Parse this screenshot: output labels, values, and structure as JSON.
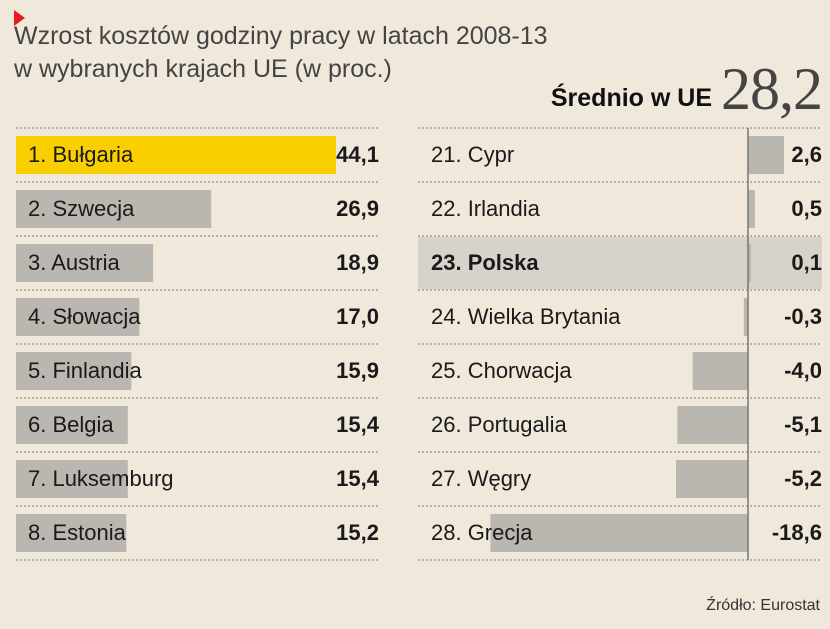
{
  "header": {
    "title": "Wzrost kosztów godziny pracy w latach 2008-13\nw wybranych krajach UE (w proc.)",
    "average_label": "Średnio w UE",
    "average_value": "28,2"
  },
  "source": "Źródło: Eurostat",
  "colors": {
    "background": "#efe8db",
    "bar": "#bab6b0",
    "highlight_bar": "#f9cf00",
    "poland_row": "#d7d2ca",
    "marker": "#e41b23"
  },
  "chart_data": {
    "type": "bar",
    "title": "Wzrost kosztów godziny pracy w latach 2008-13 w wybranych krajach UE (w proc.)",
    "unit": "proc.",
    "average": 28.2,
    "series": [
      {
        "categories": [
          "1. Bułgaria",
          "2. Szwecja",
          "3. Austria",
          "4. Słowacja",
          "5. Finlandia",
          "6. Belgia",
          "7. Luksemburg",
          "8. Estonia"
        ],
        "values": [
          44.1,
          26.9,
          18.9,
          17.0,
          15.9,
          15.4,
          15.4,
          15.2
        ],
        "labels": [
          "44,1",
          "26,9",
          "18,9",
          "17,0",
          "15,9",
          "15,4",
          "15,4",
          "15,2"
        ]
      },
      {
        "categories": [
          "21. Cypr",
          "22. Irlandia",
          "23. Polska",
          "24. Wielka Brytania",
          "25. Chorwacja",
          "26. Portugalia",
          "27.  Węgry",
          "28. Grecja"
        ],
        "values": [
          2.6,
          0.5,
          0.1,
          -0.3,
          -4.0,
          -5.1,
          -5.2,
          -18.6
        ],
        "labels": [
          "2,6",
          "0,5",
          "0,1",
          "-0,3",
          "-4,0",
          "-5,1",
          "-5,2",
          "-18,6"
        ]
      }
    ]
  }
}
